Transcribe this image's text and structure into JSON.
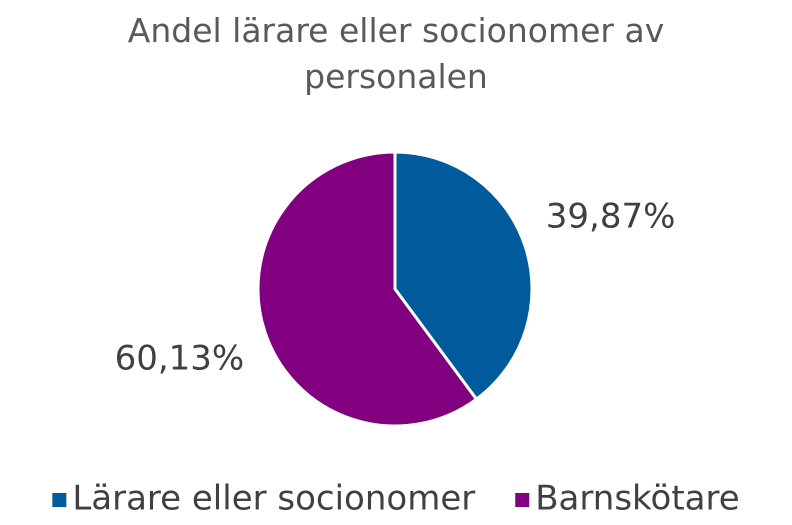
{
  "chart_data": {
    "type": "pie",
    "title": "Andel lärare eller socionomer av personalen",
    "categories": [
      "Lärare eller socionomer",
      "Barnskötare"
    ],
    "values": [
      39.87,
      60.13
    ],
    "value_labels": [
      "39,87%",
      "60,13%"
    ],
    "colors": [
      "#005a9c",
      "#800080"
    ],
    "legend": "bottom"
  }
}
